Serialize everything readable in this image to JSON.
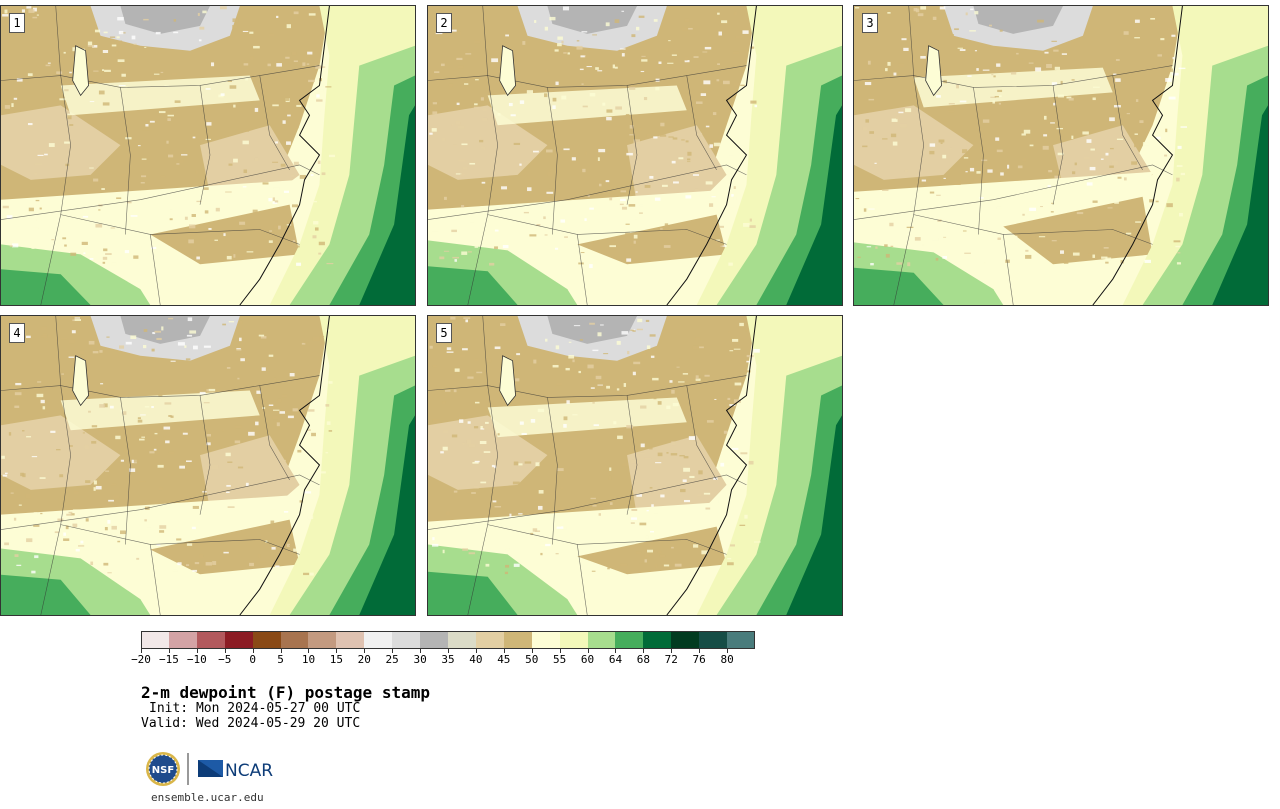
{
  "panels": [
    {
      "label": "1"
    },
    {
      "label": "2"
    },
    {
      "label": "3"
    },
    {
      "label": "4"
    },
    {
      "label": "5"
    }
  ],
  "colorbar": {
    "ticks": [
      "−20",
      "−15",
      "−10",
      "−5",
      "0",
      "5",
      "10",
      "15",
      "20",
      "25",
      "30",
      "35",
      "40",
      "45",
      "50",
      "55",
      "60",
      "64",
      "68",
      "72",
      "76",
      "80"
    ],
    "colors": [
      "#f2e8e8",
      "#d4a3a5",
      "#b2595d",
      "#8c1c24",
      "#8a4a16",
      "#a8744f",
      "#c39a80",
      "#dfc2b1",
      "#f1f1f1",
      "#dcdcdc",
      "#b4b4b4",
      "#dbdbc7",
      "#e3cfa3",
      "#cfb677",
      "#fdfdd5",
      "#f3f8ba",
      "#a7dd8e",
      "#46ad5c",
      "#016b38",
      "#023b20",
      "#164d46",
      "#4a7c7c"
    ]
  },
  "title": "2-m dewpoint (F) postage stamp",
  "init": "Init: Mon 2024-05-27 00 UTC",
  "valid": "Valid: Wed 2024-05-29 20 UTC",
  "logos": {
    "nsf": "NSF",
    "ncar": "NCAR"
  },
  "site": "ensemble.ucar.edu"
}
